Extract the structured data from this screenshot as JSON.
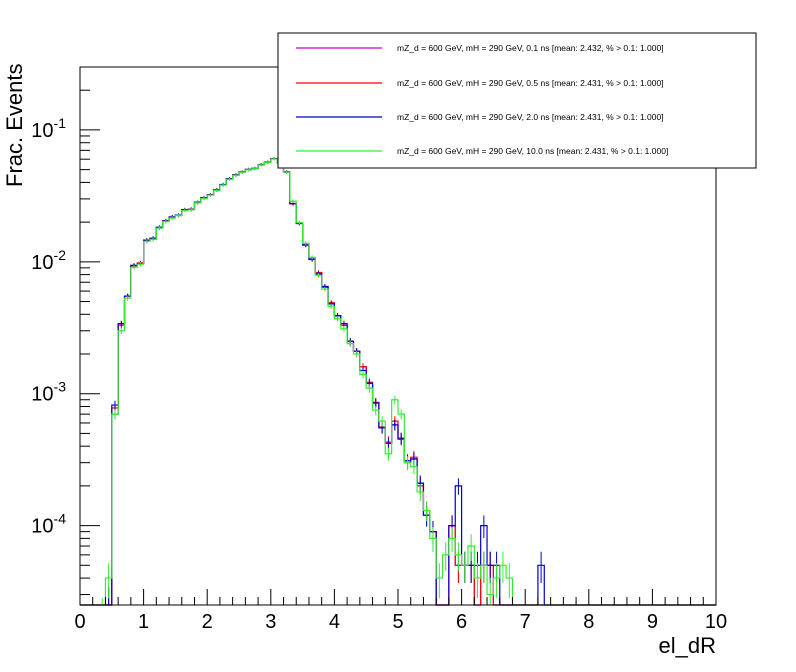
{
  "chart_data": {
    "type": "line",
    "xlabel": "el_dR",
    "ylabel": "Frac. Events",
    "xlim": [
      0,
      10
    ],
    "ylim": [
      2.5e-05,
      0.3
    ],
    "yscale": "log",
    "grid": false,
    "legend_position": "top-right",
    "x_ticks": [
      "0",
      "1",
      "2",
      "3",
      "4",
      "5",
      "6",
      "7",
      "8",
      "9",
      "10"
    ],
    "y_ticks": [
      {
        "base": "10",
        "exp": "-4",
        "value": 0.0001
      },
      {
        "base": "10",
        "exp": "-3",
        "value": 0.001
      },
      {
        "base": "10",
        "exp": "-2",
        "value": 0.01
      },
      {
        "base": "10",
        "exp": "-1",
        "value": 0.1
      }
    ],
    "bins": {
      "start": 0.0,
      "width": 0.1
    },
    "series": [
      {
        "name": "mZ_d = 600 GeV, mH = 290 GeV, 0.1 ns [mean: 2.432, % > 0.1: 1.000]",
        "color": "#cc00cc",
        "values": [
          0,
          0,
          0,
          0,
          2.5e-05,
          0.0007,
          0.0033,
          0.0055,
          0.0094,
          0.0098,
          0.0145,
          0.015,
          0.0182,
          0.0205,
          0.0218,
          0.0225,
          0.0248,
          0.025,
          0.0282,
          0.0305,
          0.0322,
          0.035,
          0.0385,
          0.0425,
          0.0455,
          0.048,
          0.05,
          0.051,
          0.0545,
          0.057,
          0.0605,
          0.056,
          0.048,
          0.0275,
          0.0195,
          0.0135,
          0.0105,
          0.0082,
          0.0065,
          0.0048,
          0.0039,
          0.0033,
          0.0024,
          0.0021,
          0.0016,
          0.0012,
          0.00085,
          0.00055,
          0.00042,
          0.00058,
          0.00045,
          0.0003,
          0.00032,
          0.0002,
          0.00012,
          9e-05,
          0,
          0,
          0.0001,
          5e-05,
          5e-05,
          5e-05,
          0,
          5e-05,
          5e-05,
          0,
          0,
          0,
          0,
          0,
          0,
          0,
          0,
          0,
          0,
          0,
          0,
          0,
          0,
          0,
          0,
          0,
          0,
          0,
          0,
          0,
          0,
          0,
          0,
          0,
          0,
          0,
          0,
          0,
          0,
          0,
          0,
          0,
          0,
          0
        ]
      },
      {
        "name": "mZ_d = 600 GeV, mH = 290 GeV, 0.5 ns [mean: 2.431, % > 0.1: 1.000]",
        "color": "#ff0000",
        "values": [
          0,
          0,
          0,
          0,
          2.5e-05,
          0.00078,
          0.0034,
          0.0055,
          0.0093,
          0.0098,
          0.0145,
          0.0151,
          0.0182,
          0.0205,
          0.0219,
          0.0226,
          0.0248,
          0.0251,
          0.0283,
          0.0305,
          0.0323,
          0.0351,
          0.0386,
          0.0426,
          0.0456,
          0.0481,
          0.0501,
          0.0511,
          0.0546,
          0.0571,
          0.0606,
          0.0561,
          0.0481,
          0.0276,
          0.0196,
          0.0134,
          0.0104,
          0.0083,
          0.0064,
          0.0049,
          0.0039,
          0.0033,
          0.0025,
          0.0021,
          0.0016,
          0.00122,
          0.00086,
          0.00056,
          0.00043,
          0.00062,
          0.00046,
          0.00031,
          0.00033,
          0.00021,
          0.00013,
          9e-05,
          0,
          0,
          0.0001,
          5e-05,
          5e-05,
          5e-05,
          0,
          5e-05,
          5e-05,
          0,
          0,
          0,
          0,
          0,
          0,
          0,
          0,
          0,
          0,
          0,
          0,
          0,
          0,
          0,
          0,
          0,
          0,
          0,
          0,
          0,
          0,
          0,
          0,
          0,
          0,
          0,
          0,
          0,
          0,
          0,
          0,
          0,
          0,
          0
        ]
      },
      {
        "name": "mZ_d = 600 GeV, mH = 290 GeV, 2.0 ns [mean: 2.431, % > 0.1: 1.000]",
        "color": "#0000cc",
        "values": [
          0,
          0,
          0,
          0,
          2.5e-05,
          0.00082,
          0.0034,
          0.0055,
          0.0094,
          0.0097,
          0.0146,
          0.0151,
          0.0183,
          0.0204,
          0.0219,
          0.0226,
          0.0249,
          0.025,
          0.0283,
          0.0306,
          0.0322,
          0.0352,
          0.0385,
          0.0427,
          0.0456,
          0.048,
          0.0502,
          0.051,
          0.0545,
          0.057,
          0.0605,
          0.0562,
          0.048,
          0.0277,
          0.0195,
          0.0134,
          0.0105,
          0.0081,
          0.0065,
          0.0048,
          0.0039,
          0.0034,
          0.0025,
          0.0021,
          0.0015,
          0.0012,
          0.00085,
          0.00055,
          0.00042,
          0.00058,
          0.00046,
          0.00031,
          0.00032,
          0.00021,
          0.00012,
          9e-05,
          0,
          0,
          0.0001,
          0.0002,
          5e-05,
          5e-05,
          5e-05,
          0.0001,
          5e-05,
          5e-05,
          0,
          0,
          0,
          0,
          0,
          0,
          5e-05,
          0,
          0,
          0,
          0,
          0,
          0,
          0,
          0,
          0,
          0,
          0,
          0,
          0,
          0,
          0,
          0,
          0,
          0,
          0,
          0,
          0,
          0,
          0,
          0,
          0,
          0,
          0
        ]
      },
      {
        "name": "mZ_d = 600 GeV, mH = 290 GeV, 10.0 ns [mean: 2.431, % > 0.1: 1.000]",
        "color": "#33ee33",
        "values": [
          0,
          0,
          0,
          2e-05,
          4e-05,
          0.0007,
          0.003,
          0.0053,
          0.0091,
          0.0096,
          0.0143,
          0.0148,
          0.018,
          0.0202,
          0.0215,
          0.0224,
          0.0245,
          0.0248,
          0.028,
          0.0302,
          0.032,
          0.0348,
          0.0382,
          0.0422,
          0.0452,
          0.0478,
          0.0498,
          0.0508,
          0.0542,
          0.0568,
          0.0602,
          0.0558,
          0.0478,
          0.0288,
          0.0198,
          0.0138,
          0.0108,
          0.0079,
          0.0062,
          0.0046,
          0.0037,
          0.0031,
          0.0024,
          0.002,
          0.0014,
          0.0011,
          0.00075,
          0.00062,
          0.00035,
          0.0009,
          0.0007,
          0.0003,
          0.00028,
          0.00018,
          0.00013,
          8e-05,
          4e-05,
          6e-05,
          8e-05,
          6e-05,
          5e-05,
          7e-05,
          4e-05,
          5e-05,
          3e-05,
          4e-05,
          5e-05,
          4e-05,
          0,
          0,
          0,
          0,
          0,
          0,
          0,
          0,
          0,
          0,
          0,
          0,
          0,
          0,
          0,
          0,
          0,
          0,
          0,
          0,
          0,
          0,
          0,
          0,
          0,
          0,
          0,
          0,
          0,
          0,
          0,
          0
        ]
      }
    ]
  }
}
